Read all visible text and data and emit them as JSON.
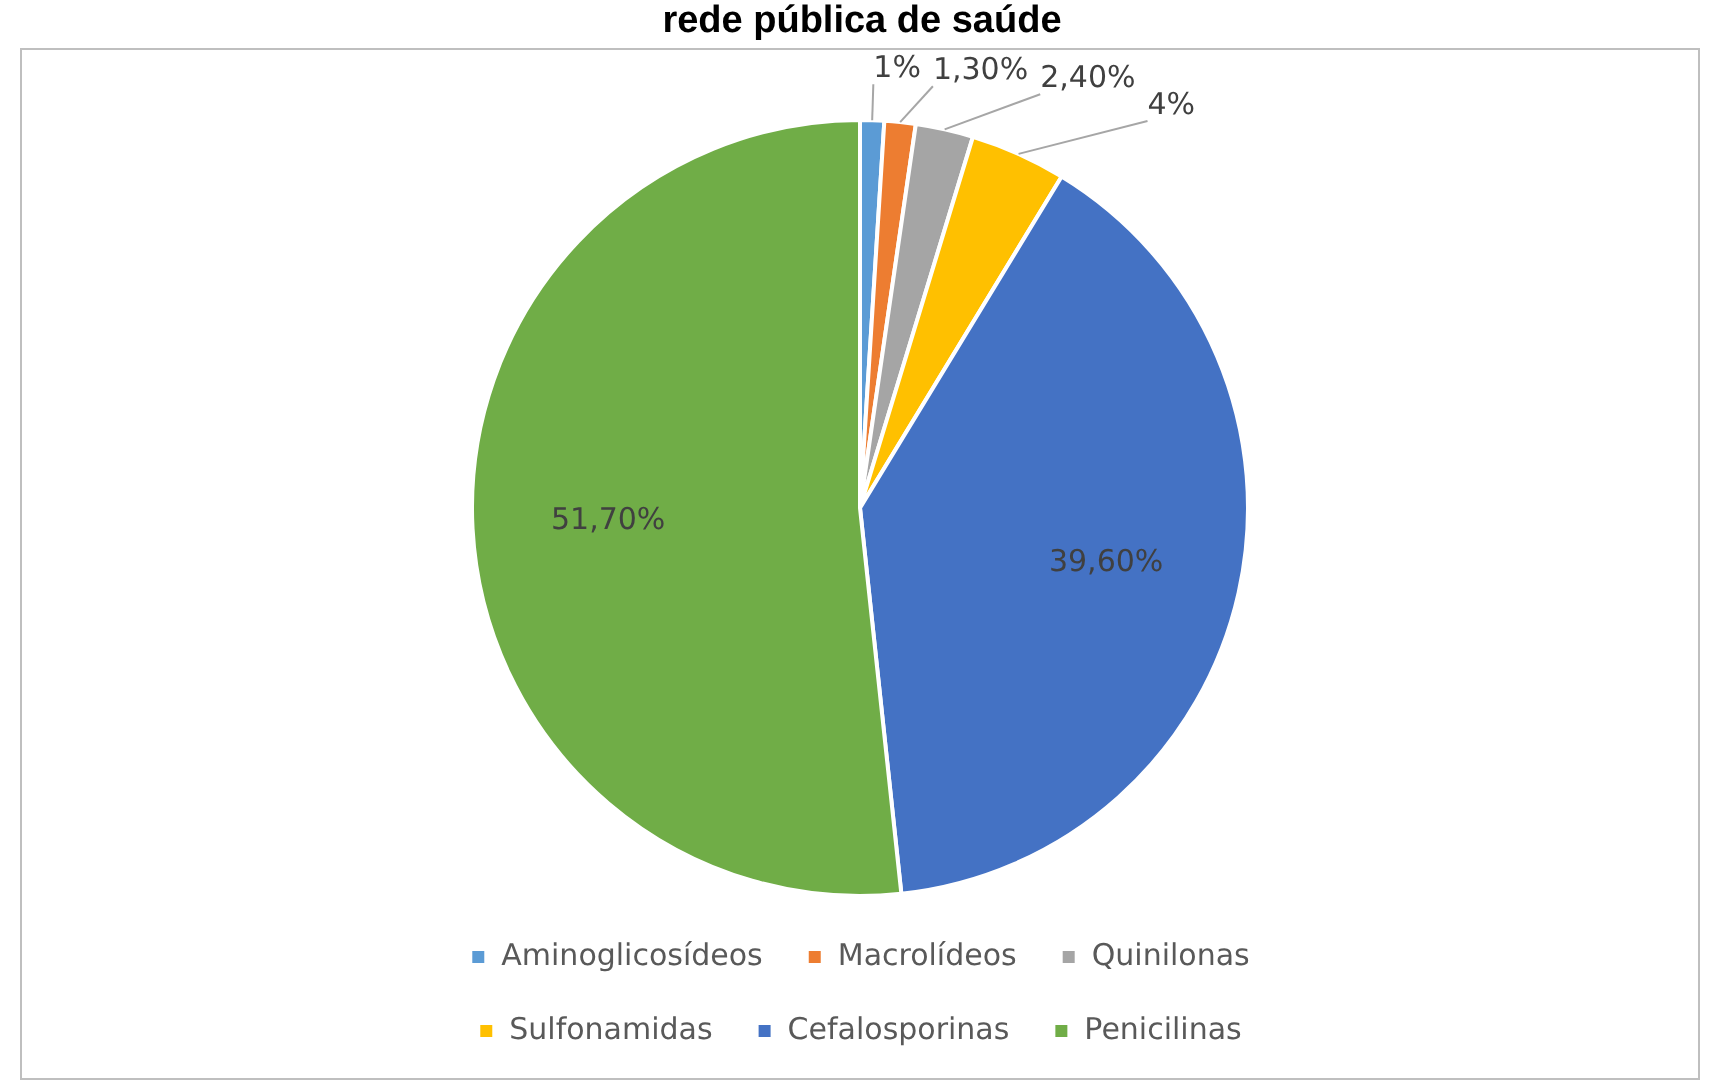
{
  "chart_data": {
    "type": "pie",
    "title": "rede pública de saúde",
    "categories": [
      "Aminoglicosídeos",
      "Macrolídeos",
      "Quinilonas",
      "Sulfonamidas",
      "Cefalosporinas",
      "Penicilinas"
    ],
    "values": [
      1,
      1.3,
      2.4,
      4,
      39.6,
      51.7
    ],
    "colors": [
      "#5b9bd5",
      "#ed7d31",
      "#a5a5a5",
      "#ffc000",
      "#4472c4",
      "#70ad47"
    ],
    "value_labels": [
      "1%",
      "1,30%",
      "2,40%",
      "4%",
      "39,60%",
      "51,70%"
    ],
    "legend": "bottom"
  }
}
